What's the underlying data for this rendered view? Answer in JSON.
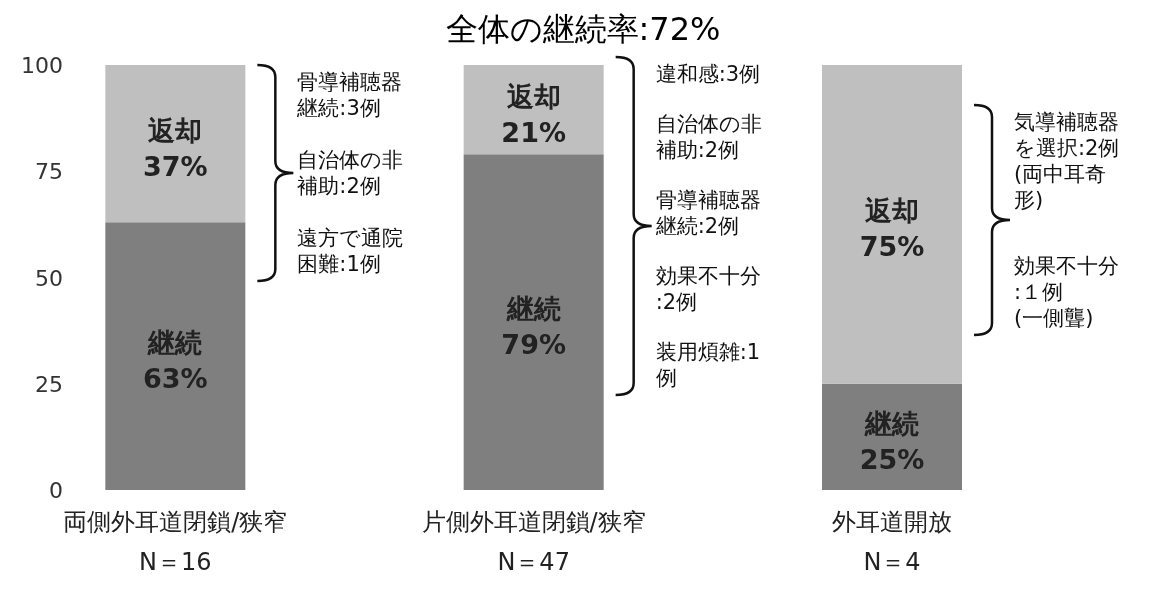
{
  "chart_data": {
    "type": "bar",
    "stacked": true,
    "title": "全体の継続率:72%",
    "categories": [
      "両側外耳道閉鎖/狭窄\nN＝16",
      "片側外耳道閉鎖/狭窄\nN＝47",
      "外耳道開放\nN＝4"
    ],
    "series": [
      {
        "color": "#7f7f7f",
        "values": [
          63,
          79,
          25
        ],
        "value_labels": [
          "継続\n63%",
          "継続\n79%",
          "継続\n25%"
        ]
      },
      {
        "color": "#bfbfbf",
        "values": [
          37,
          21,
          75
        ],
        "value_labels": [
          "返却\n37%",
          "返却\n21%",
          "返却\n75%"
        ]
      }
    ],
    "ylim": [
      0,
      100
    ],
    "yticks": [
      0,
      25,
      50,
      75,
      100
    ],
    "grid": false,
    "annotations": [
      "骨導補聴器継続:3例",
      "自治体の非補助:2例",
      "遠方で通院困難:1例",
      "違和感:3例",
      "自治体の非補助:2例",
      "骨導補聴器継続:2例",
      "効果不十分:2例",
      "装用煩雑:1例",
      "気導補聴器を選択:2例(両中耳奇形)",
      "効果不十分:１例(一側聾)"
    ]
  }
}
